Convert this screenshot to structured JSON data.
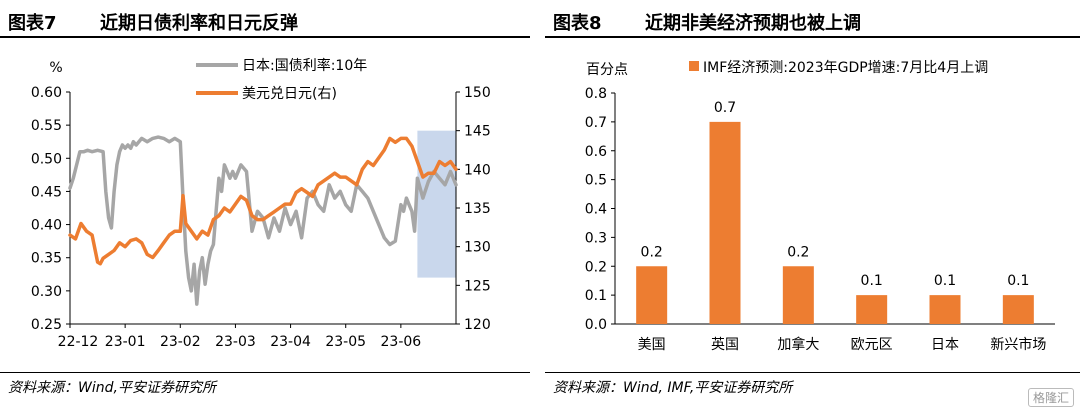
{
  "left": {
    "figure_number": "图表7",
    "title": "近期日债利率和日元反弹",
    "source": "资料来源：Wind,平安证券研究所"
  },
  "right": {
    "figure_number": "图表8",
    "title": "近期非美经济预期也被上调",
    "source": "资料来源：Wind, IMF,平安证券研究所"
  },
  "watermark": "格隆汇",
  "colors": {
    "gray": "#a6a6a6",
    "orange": "#ed7d31",
    "highlight": "#c9d7ec"
  },
  "chart_data": [
    {
      "type": "line",
      "title": "近期日债利率和日元反弹",
      "ylabel": "%",
      "x_ticks": [
        "22-12",
        "23-01",
        "23-02",
        "23-03",
        "23-04",
        "23-05",
        "23-06"
      ],
      "ylim": [
        0.25,
        0.6
      ],
      "y_ticks": [
        "0.60",
        "0.55",
        "0.50",
        "0.45",
        "0.40",
        "0.35",
        "0.30",
        "0.25"
      ],
      "y2lim": [
        120,
        150
      ],
      "y2_ticks": [
        "150",
        "145",
        "140",
        "135",
        "130",
        "125",
        "120"
      ],
      "highlight_range_months": [
        6.3,
        7.0
      ],
      "highlight_y2": [
        126,
        145
      ],
      "legend_position": "top-right",
      "series": [
        {
          "name": "日本:国债利率:10年",
          "axis": "left",
          "color": "#a6a6a6",
          "x_months": [
            0.0,
            0.06,
            0.12,
            0.18,
            0.25,
            0.32,
            0.4,
            0.5,
            0.6,
            0.65,
            0.7,
            0.75,
            0.8,
            0.85,
            0.9,
            0.95,
            1.0,
            1.05,
            1.1,
            1.15,
            1.2,
            1.3,
            1.4,
            1.5,
            1.6,
            1.7,
            1.8,
            1.9,
            2.0,
            2.05,
            2.1,
            2.15,
            2.2,
            2.25,
            2.3,
            2.35,
            2.4,
            2.45,
            2.5,
            2.55,
            2.6,
            2.65,
            2.7,
            2.75,
            2.8,
            2.85,
            2.9,
            2.95,
            3.0,
            3.1,
            3.2,
            3.3,
            3.4,
            3.5,
            3.6,
            3.7,
            3.8,
            3.9,
            4.0,
            4.1,
            4.2,
            4.3,
            4.4,
            4.5,
            4.6,
            4.7,
            4.8,
            4.9,
            5.0,
            5.1,
            5.2,
            5.3,
            5.4,
            5.5,
            5.6,
            5.7,
            5.8,
            5.9,
            6.0,
            6.05,
            6.1,
            6.15,
            6.2,
            6.25,
            6.3,
            6.4,
            6.5,
            6.6,
            6.7,
            6.8,
            6.9,
            7.0
          ],
          "values": [
            0.455,
            0.47,
            0.49,
            0.51,
            0.51,
            0.512,
            0.51,
            0.512,
            0.51,
            0.45,
            0.41,
            0.395,
            0.45,
            0.49,
            0.51,
            0.52,
            0.515,
            0.52,
            0.515,
            0.525,
            0.52,
            0.53,
            0.525,
            0.53,
            0.532,
            0.53,
            0.525,
            0.53,
            0.525,
            0.44,
            0.36,
            0.32,
            0.3,
            0.34,
            0.28,
            0.33,
            0.35,
            0.31,
            0.34,
            0.36,
            0.37,
            0.42,
            0.47,
            0.45,
            0.49,
            0.48,
            0.47,
            0.48,
            0.47,
            0.49,
            0.48,
            0.39,
            0.42,
            0.41,
            0.38,
            0.41,
            0.39,
            0.425,
            0.4,
            0.42,
            0.38,
            0.44,
            0.45,
            0.43,
            0.42,
            0.46,
            0.44,
            0.45,
            0.43,
            0.42,
            0.46,
            0.45,
            0.44,
            0.42,
            0.4,
            0.38,
            0.37,
            0.375,
            0.43,
            0.42,
            0.44,
            0.43,
            0.42,
            0.39,
            0.47,
            0.44,
            0.465,
            0.48,
            0.47,
            0.46,
            0.48,
            0.46
          ]
        },
        {
          "name": "美元兑日元(右)",
          "axis": "right",
          "color": "#ed7d31",
          "x_months": [
            0.0,
            0.1,
            0.2,
            0.3,
            0.4,
            0.5,
            0.55,
            0.6,
            0.7,
            0.8,
            0.9,
            1.0,
            1.1,
            1.2,
            1.3,
            1.4,
            1.5,
            1.6,
            1.7,
            1.8,
            1.9,
            2.0,
            2.05,
            2.1,
            2.2,
            2.3,
            2.4,
            2.5,
            2.6,
            2.7,
            2.8,
            2.9,
            3.0,
            3.1,
            3.2,
            3.3,
            3.4,
            3.5,
            3.6,
            3.7,
            3.8,
            3.9,
            4.0,
            4.1,
            4.2,
            4.3,
            4.4,
            4.5,
            4.6,
            4.7,
            4.8,
            4.9,
            5.0,
            5.1,
            5.2,
            5.3,
            5.4,
            5.5,
            5.6,
            5.7,
            5.8,
            5.9,
            6.0,
            6.1,
            6.2,
            6.3,
            6.4,
            6.5,
            6.6,
            6.7,
            6.8,
            6.9,
            7.0
          ],
          "values": [
            131.5,
            131,
            133,
            132,
            131.5,
            128,
            127.8,
            128.5,
            129,
            129.5,
            130.5,
            130,
            130.8,
            131,
            130.5,
            129,
            128.6,
            129.5,
            130.5,
            131.5,
            132,
            132,
            136.6,
            133,
            132,
            131,
            132,
            131.5,
            133.5,
            134,
            135,
            134.5,
            135.5,
            136.5,
            136,
            134,
            133.5,
            133.5,
            134,
            134.5,
            135,
            135.5,
            135.5,
            137,
            137.5,
            137,
            136.5,
            138,
            138.5,
            139,
            139.5,
            139,
            139,
            138.5,
            138,
            140,
            141,
            140.5,
            141.5,
            142.5,
            144,
            143.5,
            144,
            144,
            143,
            141,
            139,
            139.5,
            139.5,
            141,
            140.5,
            141,
            140
          ]
        }
      ]
    },
    {
      "type": "bar",
      "title": "近期非美经济预期也被上调",
      "ylabel": "百分点",
      "categories": [
        "美国",
        "英国",
        "加拿大",
        "欧元区",
        "日本",
        "新兴市场"
      ],
      "values": [
        0.2,
        0.7,
        0.2,
        0.1,
        0.1,
        0.1
      ],
      "value_labels": [
        "0.2",
        "0.7",
        "0.2",
        "0.1",
        "0.1",
        "0.1"
      ],
      "ylim": [
        0,
        0.8
      ],
      "y_ticks": [
        "0.8",
        "0.7",
        "0.6",
        "0.5",
        "0.4",
        "0.3",
        "0.2",
        "0.1",
        "0.0"
      ],
      "legend": "IMF经济预测:2023年GDP增速:7月比4月上调",
      "legend_position": "top",
      "color": "#ed7d31"
    }
  ]
}
